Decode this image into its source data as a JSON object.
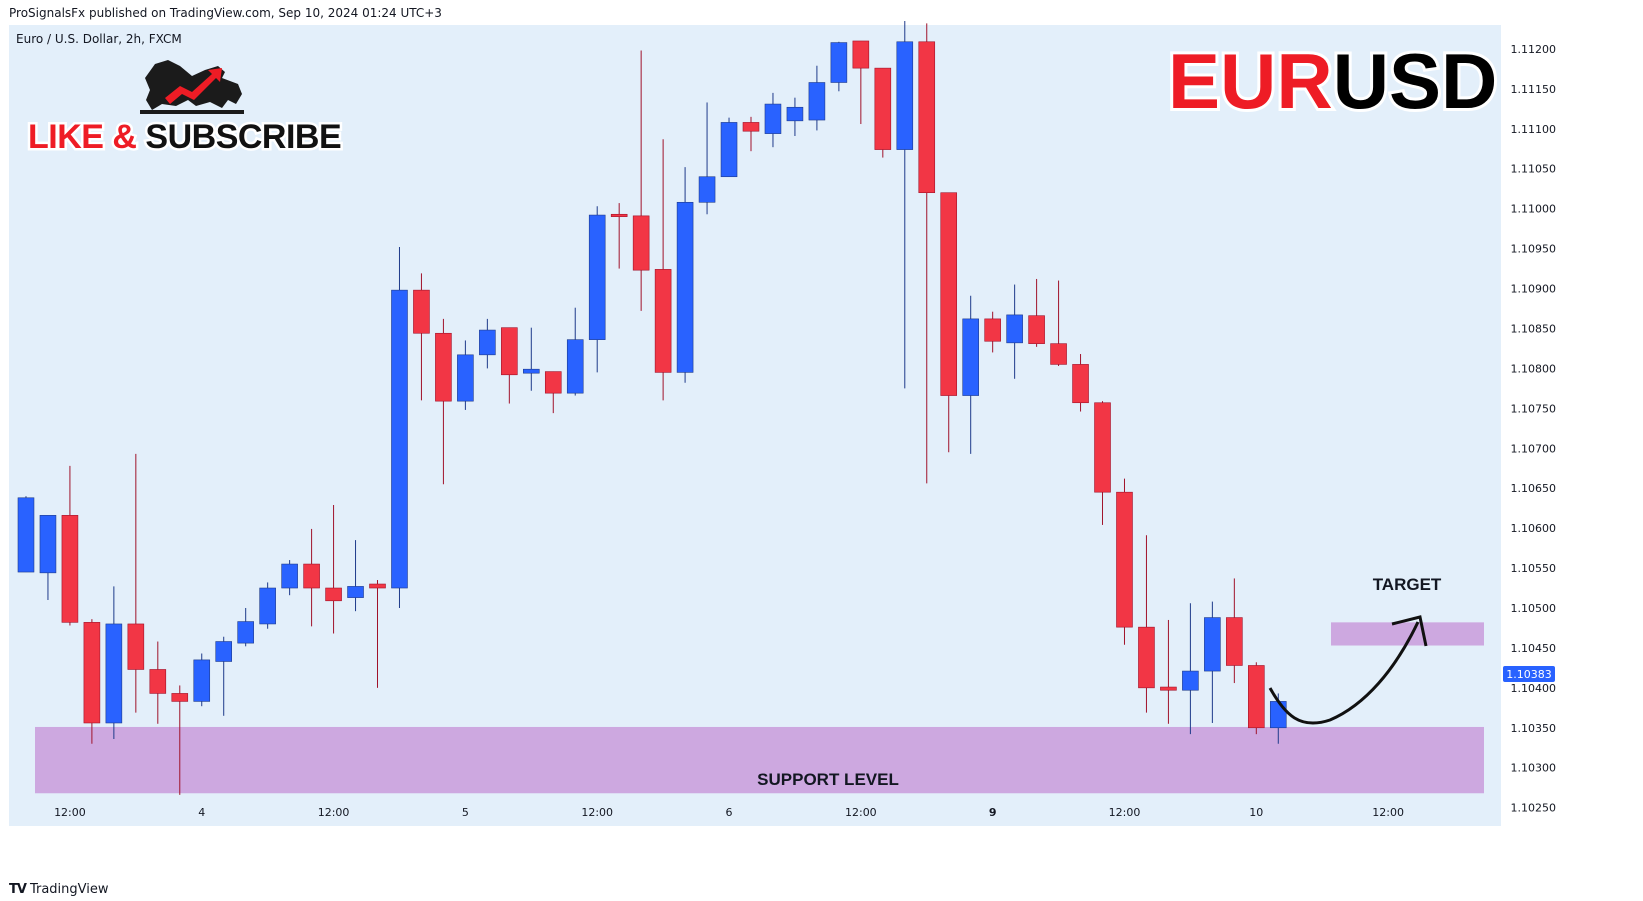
{
  "header": {
    "published_line": "ProSignalsFx published on TradingView.com, Sep 10, 2024 01:24 UTC+3",
    "symbol_line": "Euro / U.S. Dollar, 2h, FXCM"
  },
  "promo": {
    "like_text": "LIKE & ",
    "subscribe_text": "SUBSCRIBE"
  },
  "pair_title": {
    "part1": "EUR",
    "part2": "USD",
    "color1": "#ee1c25",
    "color2": "#000000"
  },
  "annotations": {
    "target_label": "TARGET",
    "support_label": "SUPPORT LEVEL",
    "zone_color": "#cda8e0"
  },
  "price_badge": {
    "value": "1.10383",
    "color": "#2962ff"
  },
  "footer": {
    "brand": "TradingView"
  },
  "colors": {
    "up": "#2962ff",
    "down": "#f23645",
    "background": "#e3effa"
  },
  "chart_data": {
    "type": "candlestick",
    "y_ticks": [
      "1.10250",
      "1.10300",
      "1.10350",
      "1.10400",
      "1.10450",
      "1.10500",
      "1.10550",
      "1.10600",
      "1.10650",
      "1.10700",
      "1.10750",
      "1.10800",
      "1.10850",
      "1.10900",
      "1.10950",
      "1.11000",
      "1.11050",
      "1.11100",
      "1.11150",
      "1.11200"
    ],
    "ylim": [
      1.10227,
      1.1123
    ],
    "x_ticks": [
      "12:00",
      "4",
      "12:00",
      "5",
      "12:00",
      "6",
      "12:00",
      "9",
      "12:00",
      "10",
      "12:00"
    ],
    "x_tick_bars": [
      2.5,
      8.5,
      14.5,
      20.5,
      26.5,
      32.5,
      38.5,
      44.5,
      50.5,
      56.5,
      62.5
    ],
    "support_zone": [
      1.10268,
      1.10351
    ],
    "target_zone": [
      1.10453,
      1.10482
    ],
    "candles": [
      {
        "o": 1.10545,
        "h": 1.1064,
        "l": 1.10545,
        "c": 1.10638
      },
      {
        "o": 1.10544,
        "h": 1.10616,
        "l": 1.1051,
        "c": 1.10616
      },
      {
        "o": 1.10616,
        "h": 1.10678,
        "l": 1.10478,
        "c": 1.10482
      },
      {
        "o": 1.10482,
        "h": 1.10486,
        "l": 1.1033,
        "c": 1.10356
      },
      {
        "o": 1.10356,
        "h": 1.10527,
        "l": 1.10336,
        "c": 1.1048
      },
      {
        "o": 1.1048,
        "h": 1.10693,
        "l": 1.10369,
        "c": 1.10423
      },
      {
        "o": 1.10423,
        "h": 1.10458,
        "l": 1.10355,
        "c": 1.10393
      },
      {
        "o": 1.10393,
        "h": 1.10403,
        "l": 1.10266,
        "c": 1.10383
      },
      {
        "o": 1.10383,
        "h": 1.10443,
        "l": 1.10377,
        "c": 1.10435
      },
      {
        "o": 1.10433,
        "h": 1.10464,
        "l": 1.10365,
        "c": 1.10458
      },
      {
        "o": 1.10456,
        "h": 1.105,
        "l": 1.10452,
        "c": 1.10483
      },
      {
        "o": 1.1048,
        "h": 1.10532,
        "l": 1.10474,
        "c": 1.10525
      },
      {
        "o": 1.10525,
        "h": 1.1056,
        "l": 1.10516,
        "c": 1.10555
      },
      {
        "o": 1.10555,
        "h": 1.10599,
        "l": 1.10477,
        "c": 1.10525
      },
      {
        "o": 1.10525,
        "h": 1.10629,
        "l": 1.10468,
        "c": 1.10509
      },
      {
        "o": 1.10513,
        "h": 1.10585,
        "l": 1.10496,
        "c": 1.10527
      },
      {
        "o": 1.1053,
        "h": 1.10535,
        "l": 1.104,
        "c": 1.10525
      },
      {
        "o": 1.10525,
        "h": 1.10952,
        "l": 1.105,
        "c": 1.10898
      },
      {
        "o": 1.10898,
        "h": 1.10919,
        "l": 1.1076,
        "c": 1.10844
      },
      {
        "o": 1.10844,
        "h": 1.10862,
        "l": 1.10655,
        "c": 1.10759
      },
      {
        "o": 1.10759,
        "h": 1.10835,
        "l": 1.10748,
        "c": 1.10817
      },
      {
        "o": 1.10817,
        "h": 1.10862,
        "l": 1.108,
        "c": 1.10848
      },
      {
        "o": 1.10851,
        "h": 1.10851,
        "l": 1.10756,
        "c": 1.10792
      },
      {
        "o": 1.10794,
        "h": 1.10851,
        "l": 1.10772,
        "c": 1.10799
      },
      {
        "o": 1.10796,
        "h": 1.10796,
        "l": 1.10744,
        "c": 1.10769
      },
      {
        "o": 1.10769,
        "h": 1.10876,
        "l": 1.10766,
        "c": 1.10836
      },
      {
        "o": 1.10836,
        "h": 1.11003,
        "l": 1.10795,
        "c": 1.10992
      },
      {
        "o": 1.10993,
        "h": 1.11007,
        "l": 1.10925,
        "c": 1.1099
      },
      {
        "o": 1.10991,
        "h": 1.11198,
        "l": 1.10872,
        "c": 1.10923
      },
      {
        "o": 1.10924,
        "h": 1.11087,
        "l": 1.1076,
        "c": 1.10795
      },
      {
        "o": 1.10795,
        "h": 1.11052,
        "l": 1.10782,
        "c": 1.11008
      },
      {
        "o": 1.11008,
        "h": 1.11133,
        "l": 1.10993,
        "c": 1.1104
      },
      {
        "o": 1.1104,
        "h": 1.11114,
        "l": 1.1104,
        "c": 1.11108
      },
      {
        "o": 1.11108,
        "h": 1.11115,
        "l": 1.11072,
        "c": 1.11097
      },
      {
        "o": 1.11094,
        "h": 1.11145,
        "l": 1.11077,
        "c": 1.11131
      },
      {
        "o": 1.1111,
        "h": 1.11139,
        "l": 1.11091,
        "c": 1.11127
      },
      {
        "o": 1.11111,
        "h": 1.11179,
        "l": 1.11098,
        "c": 1.11158
      },
      {
        "o": 1.11158,
        "h": 1.11209,
        "l": 1.11147,
        "c": 1.11208
      },
      {
        "o": 1.1121,
        "h": 1.1121,
        "l": 1.11106,
        "c": 1.11176
      },
      {
        "o": 1.11176,
        "h": 1.11176,
        "l": 1.11064,
        "c": 1.11074
      },
      {
        "o": 1.11074,
        "h": 1.11235,
        "l": 1.10775,
        "c": 1.11209
      },
      {
        "o": 1.11209,
        "h": 1.11232,
        "l": 1.10656,
        "c": 1.1102
      },
      {
        "o": 1.1102,
        "h": 1.1102,
        "l": 1.10695,
        "c": 1.10766
      },
      {
        "o": 1.10766,
        "h": 1.10891,
        "l": 1.10693,
        "c": 1.10862
      },
      {
        "o": 1.10862,
        "h": 1.10871,
        "l": 1.1082,
        "c": 1.10834
      },
      {
        "o": 1.10832,
        "h": 1.10905,
        "l": 1.10787,
        "c": 1.10867
      },
      {
        "o": 1.10866,
        "h": 1.10912,
        "l": 1.10827,
        "c": 1.10831
      },
      {
        "o": 1.10831,
        "h": 1.1091,
        "l": 1.10803,
        "c": 1.10805
      },
      {
        "o": 1.10805,
        "h": 1.10818,
        "l": 1.10746,
        "c": 1.10757
      },
      {
        "o": 1.10757,
        "h": 1.10759,
        "l": 1.10604,
        "c": 1.10645
      },
      {
        "o": 1.10645,
        "h": 1.10662,
        "l": 1.10454,
        "c": 1.10476
      },
      {
        "o": 1.10476,
        "h": 1.10591,
        "l": 1.10369,
        "c": 1.104
      },
      {
        "o": 1.10401,
        "h": 1.10485,
        "l": 1.10355,
        "c": 1.10397
      },
      {
        "o": 1.10397,
        "h": 1.10506,
        "l": 1.10342,
        "c": 1.10421
      },
      {
        "o": 1.10421,
        "h": 1.10508,
        "l": 1.10356,
        "c": 1.10488
      },
      {
        "o": 1.10488,
        "h": 1.10537,
        "l": 1.10406,
        "c": 1.10428
      },
      {
        "o": 1.10428,
        "h": 1.10432,
        "l": 1.10342,
        "c": 1.1035
      },
      {
        "o": 1.1035,
        "h": 1.10393,
        "l": 1.1033,
        "c": 1.10383
      }
    ]
  }
}
